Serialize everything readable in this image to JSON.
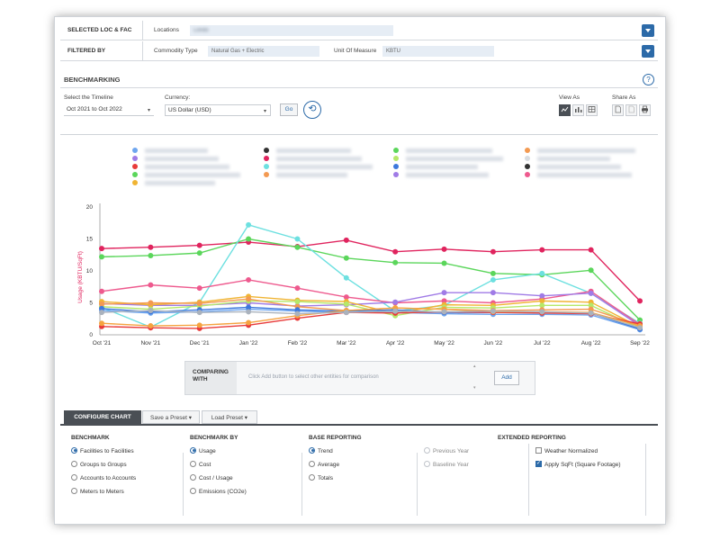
{
  "filters": {
    "selected_label": "SELECTED LOC & FAC",
    "locations_label": "Locations",
    "locations_value": "Londo",
    "filtered_label": "FILTERED BY",
    "commodity_label": "Commodity Type",
    "commodity_value": "Natural Gas + Electric",
    "uom_label": "Unit Of Measure",
    "uom_value": "KBTU"
  },
  "benchmarking": {
    "title": "BENCHMARKING",
    "help": "?",
    "timeline_label": "Select the Timeline",
    "timeline_value": "Oct 2021 to Oct 2022",
    "currency_label": "Currency:",
    "currency_value": "US Dollar (USD)",
    "go_label": "Go",
    "reset_glyph": "⟲",
    "view_as_label": "View As",
    "share_as_label": "Share As",
    "view_icons": [
      "line-chart-icon",
      "bar-chart-icon",
      "table-icon"
    ],
    "share_icons": [
      "pdf-icon",
      "excel-icon",
      "print-icon"
    ]
  },
  "chart_data": {
    "type": "line",
    "ylabel": "Usage (KBTU/SqFt)",
    "ylim": [
      0,
      20
    ],
    "yticks": [
      0,
      5,
      10,
      15,
      20
    ],
    "categories": [
      "Oct '21",
      "Nov '21",
      "Dec '21",
      "Jan '22",
      "Feb '22",
      "Mar '22",
      "Apr '22",
      "May '22",
      "Jun '22",
      "Jul '22",
      "Aug '22",
      "Sep '22"
    ],
    "grid": false,
    "legend_placement": "top",
    "series": [
      {
        "color": "#e0245e",
        "values": [
          13.5,
          13.7,
          14.0,
          14.5,
          13.8,
          14.8,
          13.0,
          13.4,
          13.0,
          13.3,
          13.3,
          5.3
        ]
      },
      {
        "color": "#5bd65b",
        "values": [
          12.2,
          12.4,
          12.8,
          15.0,
          13.7,
          12.0,
          11.3,
          11.2,
          9.6,
          9.4,
          10.1,
          2.3
        ]
      },
      {
        "color": "#6de0e0",
        "values": [
          4.3,
          1.2,
          5.1,
          17.2,
          15.0,
          8.9,
          3.7,
          4.6,
          8.6,
          9.6,
          6.5,
          1.8
        ]
      },
      {
        "color": "#ee5a8e",
        "values": [
          6.8,
          7.8,
          7.3,
          8.6,
          7.3,
          5.9,
          5.0,
          5.3,
          5.0,
          5.6,
          6.8,
          1.6
        ]
      },
      {
        "color": "#a07be6",
        "values": [
          4.9,
          4.6,
          4.6,
          5.0,
          4.5,
          4.7,
          5.1,
          6.6,
          6.6,
          6.1,
          6.5,
          1.4
        ]
      },
      {
        "color": "#f0b433",
        "values": [
          5.2,
          4.7,
          5.1,
          6.0,
          5.4,
          5.2,
          3.3,
          4.7,
          4.6,
          5.3,
          5.1,
          1.2
        ]
      },
      {
        "color": "#b5e86a",
        "values": [
          4.4,
          4.0,
          4.5,
          5.3,
          5.2,
          4.8,
          3.0,
          4.3,
          4.2,
          4.6,
          4.6,
          1.0
        ]
      },
      {
        "color": "#f39a52",
        "values": [
          4.8,
          5.0,
          4.9,
          5.6,
          4.4,
          3.8,
          4.2,
          4.0,
          3.8,
          3.9,
          4.0,
          1.5
        ]
      },
      {
        "color": "#6ea6ef",
        "values": [
          3.8,
          3.4,
          3.6,
          4.0,
          3.7,
          3.5,
          3.5,
          3.3,
          3.2,
          3.2,
          3.1,
          0.8
        ]
      },
      {
        "color": "#3d78dc",
        "values": [
          4.1,
          3.6,
          3.9,
          4.3,
          3.9,
          3.7,
          3.9,
          3.5,
          3.5,
          3.6,
          3.4,
          0.9
        ]
      },
      {
        "color": "#e83a3a",
        "values": [
          1.3,
          1.1,
          1.0,
          1.5,
          2.6,
          3.5,
          3.4,
          3.6,
          3.5,
          3.4,
          3.3,
          1.7
        ]
      },
      {
        "color": "#f5a340",
        "values": [
          1.8,
          1.4,
          1.5,
          1.9,
          3.0,
          3.8,
          4.2,
          4.0,
          3.6,
          3.6,
          3.5,
          1.4
        ]
      },
      {
        "color": "#aab2bd",
        "values": [
          3.5,
          3.8,
          3.5,
          3.6,
          3.3,
          3.5,
          3.7,
          3.6,
          3.7,
          3.6,
          3.4,
          1.1
        ]
      }
    ]
  },
  "legend": [
    {
      "color": "#6ea6ef"
    },
    {
      "color": "#333333"
    },
    {
      "color": "#5bd65b"
    },
    {
      "color": "#f39a52"
    },
    {
      "color": "#a07be6"
    },
    {
      "color": "#e0245e"
    },
    {
      "color": "#b5e86a"
    },
    {
      "color": "#d9dde2"
    },
    {
      "color": "#e83a3a"
    },
    {
      "color": "#6de0e0"
    },
    {
      "color": "#3d78dc"
    },
    {
      "color": "#333333"
    },
    {
      "color": "#5bd65b"
    },
    {
      "color": "#f39a52"
    },
    {
      "color": "#a07be6"
    },
    {
      "color": "#ee5a8e"
    },
    {
      "color": "#f0b433"
    }
  ],
  "compare": {
    "label_line1": "COMPARING",
    "label_line2": "WITH",
    "message": "Click Add button to select other entities for comparison",
    "add_label": "Add"
  },
  "config": {
    "tab_configure": "CONFIGURE CHART",
    "tab_save": "Save a Preset",
    "tab_load": "Load Preset",
    "benchmark_head": "BENCHMARK",
    "benchmark_opts": [
      "Facilities to Facilities",
      "Groups to Groups",
      "Accounts to Accounts",
      "Meters to Meters"
    ],
    "benchmark_by_head": "BENCHMARK BY",
    "benchmark_by_opts": [
      "Usage",
      "Cost",
      "Cost / Usage",
      "Emissions (CO2e)"
    ],
    "base_head": "BASE REPORTING",
    "base_opts": [
      "Trend",
      "Average",
      "Totals"
    ],
    "extended_head": "EXTENDED REPORTING",
    "extended_radio_opts": [
      "Previous Year",
      "Baseline Year"
    ],
    "extended_check_opts": [
      "Weather Normalized",
      "Apply SqFt (Square Footage)"
    ]
  }
}
